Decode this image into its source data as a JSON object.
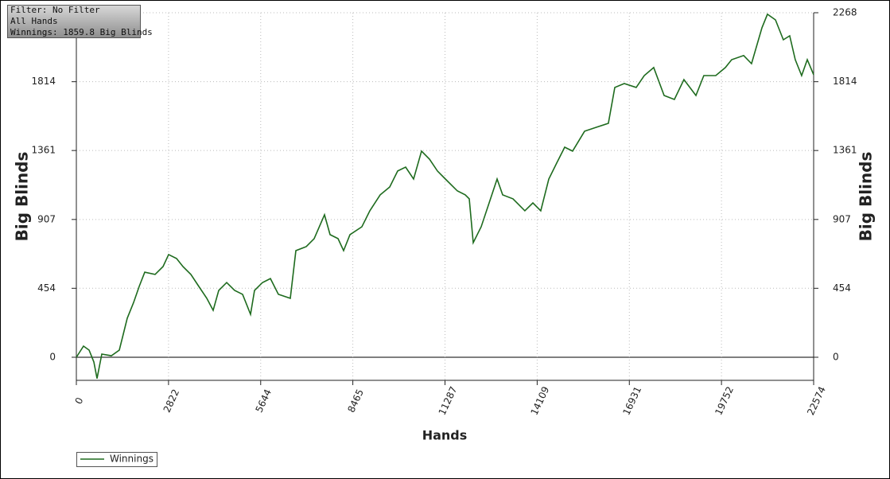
{
  "chart_data": {
    "type": "line",
    "x_label": "Hands",
    "y_label": "Big Blinds",
    "annotations": [
      "Filter: No Filter",
      "All Hands",
      "Winnings: 1859.8 Big Blinds"
    ],
    "x": [
      0,
      219,
      390,
      536,
      633,
      779,
      1071,
      1315,
      1437,
      1558,
      1753,
      1924,
      2094,
      2411,
      2654,
      2825,
      3068,
      3263,
      3506,
      3750,
      3993,
      4188,
      4359,
      4602,
      4846,
      5089,
      5333,
      5454,
      5698,
      5941,
      6185,
      6550,
      6721,
      7037,
      7281,
      7597,
      7768,
      8011,
      8182,
      8376,
      8742,
      8985,
      9302,
      9594,
      9837,
      10081,
      10324,
      10568,
      10811,
      11055,
      11298,
      11664,
      11907,
      12029,
      12151,
      12394,
      12638,
      12881,
      13052,
      13368,
      13733,
      13977,
      14220,
      14464,
      14707,
      14951,
      15194,
      15560,
      15925,
      16290,
      16485,
      16777,
      17142,
      17386,
      17678,
      17995,
      18311,
      18603,
      18969,
      19212,
      19577,
      19870,
      20064,
      20430,
      20673,
      20990,
      21160,
      21404,
      21647,
      21842,
      22012,
      22207,
      22378,
      22574
    ],
    "series": [
      {
        "name": "Winnings",
        "color": "#1e6b1e",
        "values": [
          0,
          73,
          47,
          -31,
          -140,
          21,
          10,
          47,
          152,
          257,
          361,
          466,
          560,
          545,
          597,
          676,
          650,
          597,
          545,
          466,
          388,
          309,
          440,
          492,
          440,
          414,
          283,
          440,
          492,
          518,
          414,
          388,
          702,
          728,
          781,
          938,
          807,
          781,
          702,
          807,
          859,
          964,
          1069,
          1121,
          1226,
          1252,
          1173,
          1357,
          1304,
          1226,
          1173,
          1095,
          1069,
          1043,
          754,
          859,
          1016,
          1173,
          1069,
          1043,
          964,
          1016,
          964,
          1173,
          1278,
          1383,
          1357,
          1488,
          1514,
          1540,
          1776,
          1802,
          1776,
          1854,
          1907,
          1723,
          1697,
          1828,
          1723,
          1854,
          1854,
          1907,
          1959,
          1986,
          1933,
          2169,
          2258,
          2221,
          2090,
          2116,
          1959,
          1854,
          1959,
          1860
        ]
      }
    ],
    "xlim": [
      0,
      22574
    ],
    "xticks": [
      0,
      2822,
      5644,
      8465,
      11287,
      14109,
      16931,
      19752,
      22574
    ],
    "ylim": [
      -152,
      2268
    ],
    "yticks": [
      0,
      454,
      907,
      1361,
      1814,
      2268
    ],
    "y2lim": [
      -152,
      2268
    ],
    "y2ticks": [
      0,
      454,
      907,
      1361,
      1814,
      2268
    ],
    "grid": true,
    "legend": "bottom-left"
  }
}
